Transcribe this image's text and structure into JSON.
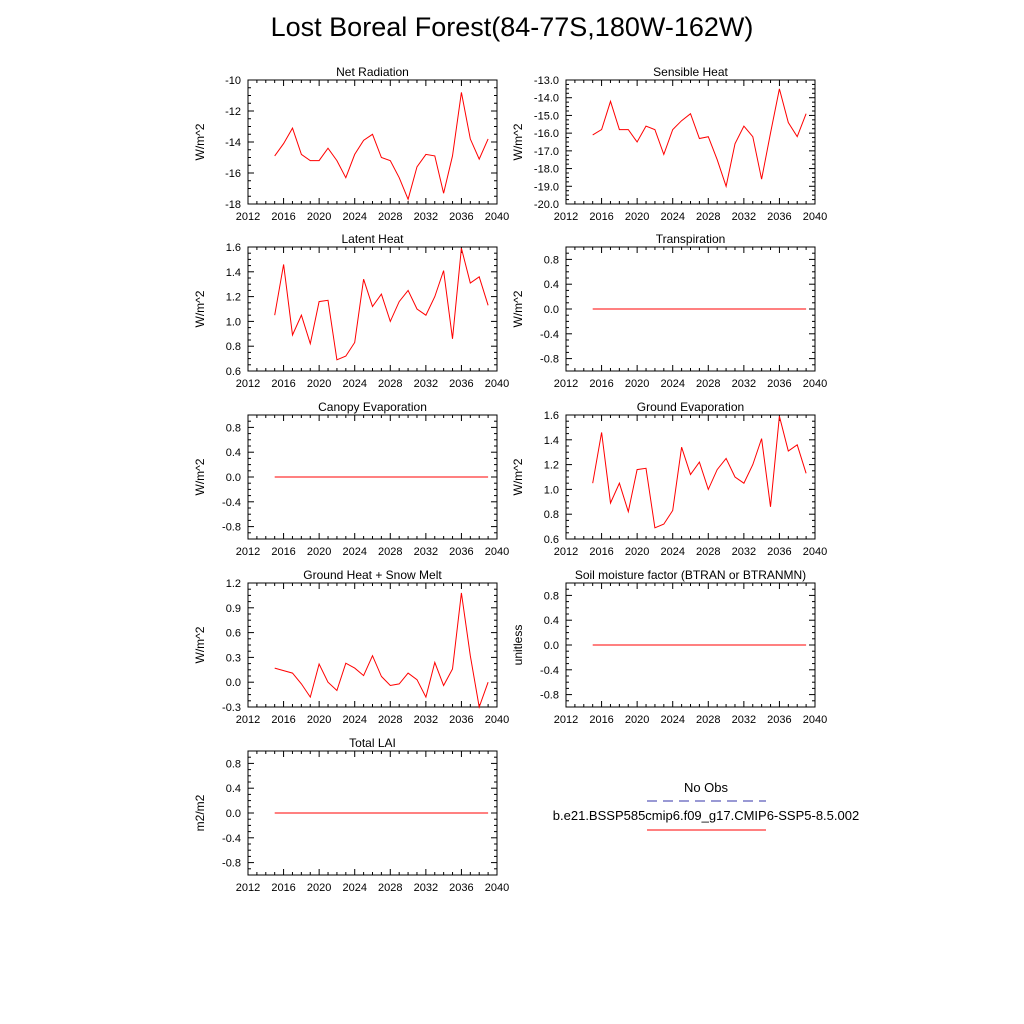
{
  "figure": {
    "title": "Lost Boreal Forest(84-77S,180W-162W)"
  },
  "legend": {
    "obs_label": "No Obs",
    "obs_color": "#3333aa",
    "model_label": "b.e21.BSSP585cmip6.f09_g17.CMIP6-SSP5-8.5.002",
    "model_color": "#ff0000"
  },
  "chart_data": [
    {
      "type": "line",
      "title": "Net Radiation",
      "ylabel": "W/m^2",
      "xlim": [
        2012,
        2040
      ],
      "ylim": [
        -18,
        -10
      ],
      "xticks": [
        "2012",
        "2016",
        "2020",
        "2024",
        "2028",
        "2032",
        "2036",
        "2040"
      ],
      "yticks": [
        "-18",
        "-16",
        "-14",
        "-12",
        "-10"
      ],
      "x": [
        2015,
        2016,
        2017,
        2018,
        2019,
        2020,
        2021,
        2022,
        2023,
        2024,
        2025,
        2026,
        2027,
        2028,
        2029,
        2030,
        2031,
        2032,
        2033,
        2034,
        2035,
        2036,
        2037,
        2038,
        2039
      ],
      "series": [
        {
          "values": [
            -14.9,
            -14.1,
            -13.1,
            -14.8,
            -15.2,
            -15.2,
            -14.4,
            -15.2,
            -16.3,
            -14.8,
            -13.9,
            -13.5,
            -15.0,
            -15.2,
            -16.3,
            -17.7,
            -15.6,
            -14.8,
            -14.9,
            -17.3,
            -14.9,
            -10.8,
            -13.8,
            -15.1,
            -13.8
          ]
        }
      ]
    },
    {
      "type": "line",
      "title": "Sensible Heat",
      "ylabel": "W/m^2",
      "xlim": [
        2012,
        2040
      ],
      "ylim": [
        -20,
        -13
      ],
      "xticks": [
        "2012",
        "2016",
        "2020",
        "2024",
        "2028",
        "2032",
        "2036",
        "2040"
      ],
      "yticks": [
        "-20.0",
        "-19.0",
        "-18.0",
        "-17.0",
        "-16.0",
        "-15.0",
        "-14.0",
        "-13.0"
      ],
      "x": [
        2015,
        2016,
        2017,
        2018,
        2019,
        2020,
        2021,
        2022,
        2023,
        2024,
        2025,
        2026,
        2027,
        2028,
        2029,
        2030,
        2031,
        2032,
        2033,
        2034,
        2035,
        2036,
        2037,
        2038,
        2039
      ],
      "series": [
        {
          "values": [
            -16.1,
            -15.8,
            -14.2,
            -15.8,
            -15.8,
            -16.5,
            -15.6,
            -15.8,
            -17.2,
            -15.8,
            -15.3,
            -14.9,
            -16.3,
            -16.2,
            -17.5,
            -19.0,
            -16.6,
            -15.6,
            -16.2,
            -18.6,
            -16.0,
            -13.5,
            -15.4,
            -16.2,
            -14.9
          ]
        }
      ]
    },
    {
      "type": "line",
      "title": "Latent Heat",
      "ylabel": "W/m^2",
      "xlim": [
        2012,
        2040
      ],
      "ylim": [
        0.6,
        1.6
      ],
      "xticks": [
        "2012",
        "2016",
        "2020",
        "2024",
        "2028",
        "2032",
        "2036",
        "2040"
      ],
      "yticks": [
        "0.6",
        "0.8",
        "1.0",
        "1.2",
        "1.4",
        "1.6"
      ],
      "x": [
        2015,
        2016,
        2017,
        2018,
        2019,
        2020,
        2021,
        2022,
        2023,
        2024,
        2025,
        2026,
        2027,
        2028,
        2029,
        2030,
        2031,
        2032,
        2033,
        2034,
        2035,
        2036,
        2037,
        2038,
        2039
      ],
      "series": [
        {
          "values": [
            1.05,
            1.46,
            0.89,
            1.05,
            0.82,
            1.16,
            1.17,
            0.69,
            0.72,
            0.83,
            1.34,
            1.12,
            1.22,
            1.0,
            1.16,
            1.25,
            1.1,
            1.05,
            1.2,
            1.41,
            0.86,
            1.59,
            1.31,
            1.36,
            1.13
          ]
        }
      ]
    },
    {
      "type": "line",
      "title": "Transpiration",
      "ylabel": "W/m^2",
      "xlim": [
        2012,
        2040
      ],
      "ylim": [
        -1.0,
        1.0
      ],
      "xticks": [
        "2012",
        "2016",
        "2020",
        "2024",
        "2028",
        "2032",
        "2036",
        "2040"
      ],
      "yticks": [
        "-0.8",
        "-0.4",
        "0.0",
        "0.4",
        "0.8"
      ],
      "x": [
        2015,
        2016,
        2017,
        2018,
        2019,
        2020,
        2021,
        2022,
        2023,
        2024,
        2025,
        2026,
        2027,
        2028,
        2029,
        2030,
        2031,
        2032,
        2033,
        2034,
        2035,
        2036,
        2037,
        2038,
        2039
      ],
      "series": [
        {
          "values": [
            0,
            0,
            0,
            0,
            0,
            0,
            0,
            0,
            0,
            0,
            0,
            0,
            0,
            0,
            0,
            0,
            0,
            0,
            0,
            0,
            0,
            0,
            0,
            0,
            0
          ]
        }
      ]
    },
    {
      "type": "line",
      "title": "Canopy Evaporation",
      "ylabel": "W/m^2",
      "xlim": [
        2012,
        2040
      ],
      "ylim": [
        -1.0,
        1.0
      ],
      "xticks": [
        "2012",
        "2016",
        "2020",
        "2024",
        "2028",
        "2032",
        "2036",
        "2040"
      ],
      "yticks": [
        "-0.8",
        "-0.4",
        "0.0",
        "0.4",
        "0.8"
      ],
      "x": [
        2015,
        2016,
        2017,
        2018,
        2019,
        2020,
        2021,
        2022,
        2023,
        2024,
        2025,
        2026,
        2027,
        2028,
        2029,
        2030,
        2031,
        2032,
        2033,
        2034,
        2035,
        2036,
        2037,
        2038,
        2039
      ],
      "series": [
        {
          "values": [
            0,
            0,
            0,
            0,
            0,
            0,
            0,
            0,
            0,
            0,
            0,
            0,
            0,
            0,
            0,
            0,
            0,
            0,
            0,
            0,
            0,
            0,
            0,
            0,
            0
          ]
        }
      ]
    },
    {
      "type": "line",
      "title": "Ground Evaporation",
      "ylabel": "W/m^2",
      "xlim": [
        2012,
        2040
      ],
      "ylim": [
        0.6,
        1.6
      ],
      "xticks": [
        "2012",
        "2016",
        "2020",
        "2024",
        "2028",
        "2032",
        "2036",
        "2040"
      ],
      "yticks": [
        "0.6",
        "0.8",
        "1.0",
        "1.2",
        "1.4",
        "1.6"
      ],
      "x": [
        2015,
        2016,
        2017,
        2018,
        2019,
        2020,
        2021,
        2022,
        2023,
        2024,
        2025,
        2026,
        2027,
        2028,
        2029,
        2030,
        2031,
        2032,
        2033,
        2034,
        2035,
        2036,
        2037,
        2038,
        2039
      ],
      "series": [
        {
          "values": [
            1.05,
            1.46,
            0.89,
            1.05,
            0.82,
            1.16,
            1.17,
            0.69,
            0.72,
            0.83,
            1.34,
            1.12,
            1.22,
            1.0,
            1.16,
            1.25,
            1.1,
            1.05,
            1.2,
            1.41,
            0.86,
            1.59,
            1.31,
            1.36,
            1.13
          ]
        }
      ]
    },
    {
      "type": "line",
      "title": "Ground Heat + Snow Melt",
      "ylabel": "W/m^2",
      "xlim": [
        2012,
        2040
      ],
      "ylim": [
        -0.3,
        1.2
      ],
      "xticks": [
        "2012",
        "2016",
        "2020",
        "2024",
        "2028",
        "2032",
        "2036",
        "2040"
      ],
      "yticks": [
        "-0.3",
        "0.0",
        "0.3",
        "0.6",
        "0.9",
        "1.2"
      ],
      "x": [
        2015,
        2016,
        2017,
        2018,
        2019,
        2020,
        2021,
        2022,
        2023,
        2024,
        2025,
        2026,
        2027,
        2028,
        2029,
        2030,
        2031,
        2032,
        2033,
        2034,
        2035,
        2036,
        2037,
        2038,
        2039
      ],
      "series": [
        {
          "values": [
            0.17,
            0.14,
            0.11,
            -0.02,
            -0.18,
            0.22,
            0.0,
            -0.1,
            0.23,
            0.17,
            0.08,
            0.32,
            0.07,
            -0.04,
            -0.02,
            0.11,
            0.03,
            -0.18,
            0.24,
            -0.04,
            0.16,
            1.08,
            0.32,
            -0.3,
            0.0
          ]
        }
      ]
    },
    {
      "type": "line",
      "title": "Soil moisture factor (BTRAN or BTRANMN)",
      "ylabel": "unitless",
      "xlim": [
        2012,
        2040
      ],
      "ylim": [
        -1.0,
        1.0
      ],
      "xticks": [
        "2012",
        "2016",
        "2020",
        "2024",
        "2028",
        "2032",
        "2036",
        "2040"
      ],
      "yticks": [
        "-0.8",
        "-0.4",
        "0.0",
        "0.4",
        "0.8"
      ],
      "x": [
        2015,
        2016,
        2017,
        2018,
        2019,
        2020,
        2021,
        2022,
        2023,
        2024,
        2025,
        2026,
        2027,
        2028,
        2029,
        2030,
        2031,
        2032,
        2033,
        2034,
        2035,
        2036,
        2037,
        2038,
        2039
      ],
      "series": [
        {
          "values": [
            0,
            0,
            0,
            0,
            0,
            0,
            0,
            0,
            0,
            0,
            0,
            0,
            0,
            0,
            0,
            0,
            0,
            0,
            0,
            0,
            0,
            0,
            0,
            0,
            0
          ]
        }
      ]
    },
    {
      "type": "line",
      "title": "Total LAI",
      "ylabel": "m2/m2",
      "xlim": [
        2012,
        2040
      ],
      "ylim": [
        -1.0,
        1.0
      ],
      "xticks": [
        "2012",
        "2016",
        "2020",
        "2024",
        "2028",
        "2032",
        "2036",
        "2040"
      ],
      "yticks": [
        "-0.8",
        "-0.4",
        "0.0",
        "0.4",
        "0.8"
      ],
      "x": [
        2015,
        2016,
        2017,
        2018,
        2019,
        2020,
        2021,
        2022,
        2023,
        2024,
        2025,
        2026,
        2027,
        2028,
        2029,
        2030,
        2031,
        2032,
        2033,
        2034,
        2035,
        2036,
        2037,
        2038,
        2039
      ],
      "series": [
        {
          "values": [
            0,
            0,
            0,
            0,
            0,
            0,
            0,
            0,
            0,
            0,
            0,
            0,
            0,
            0,
            0,
            0,
            0,
            0,
            0,
            0,
            0,
            0,
            0,
            0,
            0
          ]
        }
      ]
    }
  ]
}
